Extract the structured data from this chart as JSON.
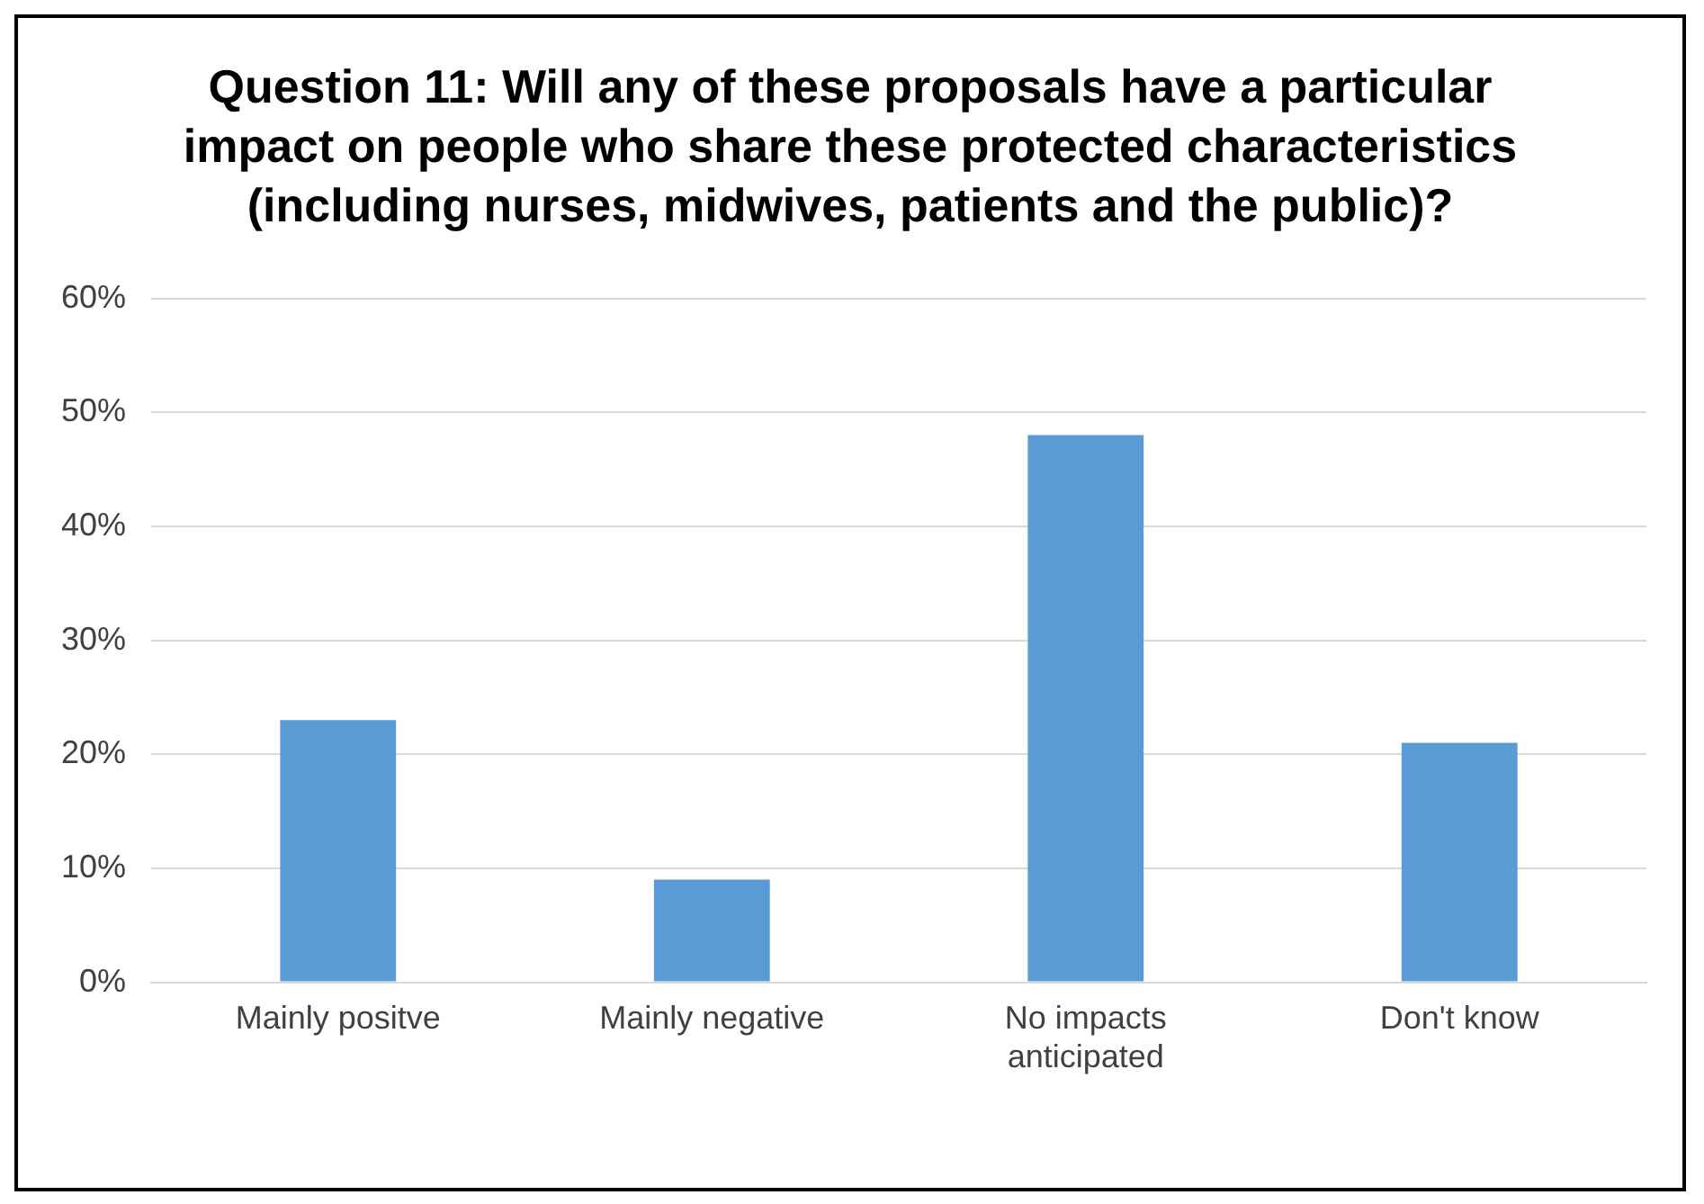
{
  "chart_data": {
    "type": "bar",
    "title": "Question 11: Will any of these proposals have a particular impact on people who share these protected characteristics (including nurses, midwives, patients and the public)?",
    "categories": [
      "Mainly positve",
      "Mainly negative",
      "No impacts anticipated",
      "Don't know"
    ],
    "values": [
      23,
      9,
      48,
      21
    ],
    "color": "#5b9bd5",
    "ylim": [
      0,
      60
    ],
    "yticks": [
      {
        "value": 0,
        "label": "0%"
      },
      {
        "value": 10,
        "label": "10%"
      },
      {
        "value": 20,
        "label": "20%"
      },
      {
        "value": 30,
        "label": "30%"
      },
      {
        "value": 40,
        "label": "40%"
      },
      {
        "value": 50,
        "label": "50%"
      },
      {
        "value": 60,
        "label": "60%"
      }
    ],
    "grid": "y",
    "legend": false
  }
}
